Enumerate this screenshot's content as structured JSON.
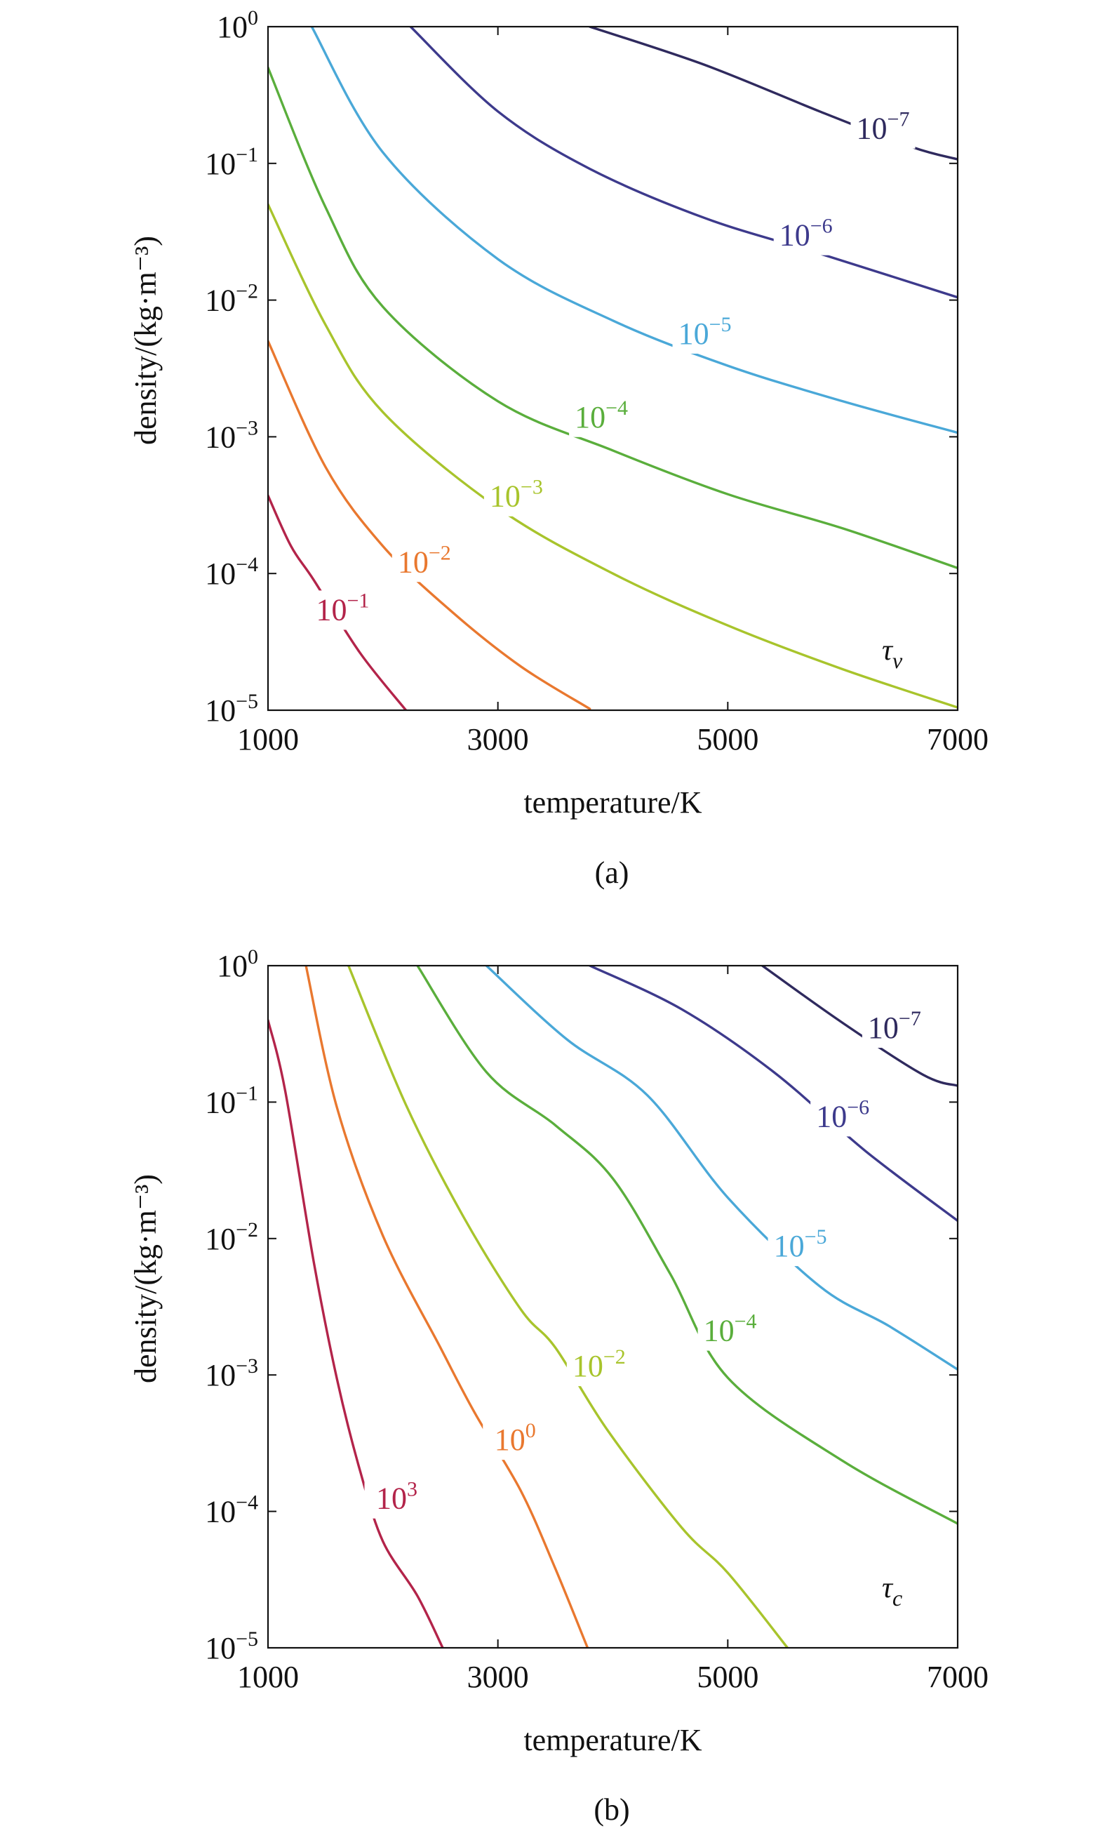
{
  "chart_data": [
    {
      "panel": "(a)",
      "type": "line",
      "xlabel": "temperature/K",
      "ylabel": "density/(kg·m⁻³)",
      "xlim": [
        1000,
        7000
      ],
      "ylim_log10": [
        -5,
        0
      ],
      "yscale": "log",
      "xticks": [
        "1000",
        "3000",
        "5000",
        "7000"
      ],
      "yticks": [
        {
          "base": "10",
          "exp": "0"
        },
        {
          "base": "10",
          "exp": "−1"
        },
        {
          "base": "10",
          "exp": "−2"
        },
        {
          "base": "10",
          "exp": "−3"
        },
        {
          "base": "10",
          "exp": "−4"
        },
        {
          "base": "10",
          "exp": "−5"
        }
      ],
      "annotation": {
        "symbol": "τ",
        "sub": "v"
      },
      "series": [
        {
          "name": "10^-7",
          "label_base": "10",
          "label_exp": "−7",
          "color": "#2f2a5e",
          "points": [
            [
              3800,
              0
            ],
            [
              4800,
              -0.28
            ],
            [
              5800,
              -0.62
            ],
            [
              6600,
              -0.88
            ],
            [
              7000,
              -0.97
            ]
          ],
          "label_at": [
            6350,
            -0.82
          ]
        },
        {
          "name": "10^-6",
          "label_base": "10",
          "label_exp": "−6",
          "color": "#3d3a8c",
          "points": [
            [
              2240,
              0
            ],
            [
              3000,
              -0.62
            ],
            [
              3800,
              -1.04
            ],
            [
              4800,
              -1.4
            ],
            [
              5800,
              -1.66
            ],
            [
              7000,
              -1.98
            ]
          ],
          "label_at": [
            5680,
            -1.6
          ]
        },
        {
          "name": "10^-5",
          "label_base": "10",
          "label_exp": "−5",
          "color": "#4aa8d8",
          "points": [
            [
              1380,
              0
            ],
            [
              2000,
              -0.92
            ],
            [
              3000,
              -1.7
            ],
            [
              4000,
              -2.15
            ],
            [
              5000,
              -2.48
            ],
            [
              6000,
              -2.74
            ],
            [
              7000,
              -2.97
            ]
          ],
          "label_at": [
            4800,
            -2.32
          ]
        },
        {
          "name": "10^-4",
          "label_base": "10",
          "label_exp": "−4",
          "color": "#5aae3c",
          "points": [
            [
              1000,
              -0.3
            ],
            [
              1500,
              -1.32
            ],
            [
              2000,
              -2.05
            ],
            [
              3000,
              -2.74
            ],
            [
              4000,
              -3.1
            ],
            [
              5000,
              -3.42
            ],
            [
              6000,
              -3.67
            ],
            [
              7000,
              -3.96
            ]
          ],
          "label_at": [
            3900,
            -2.93
          ]
        },
        {
          "name": "10^-3",
          "label_base": "10",
          "label_exp": "−3",
          "color": "#a8c42c",
          "points": [
            [
              1000,
              -1.3
            ],
            [
              1500,
              -2.18
            ],
            [
              2000,
              -2.82
            ],
            [
              3000,
              -3.52
            ],
            [
              4000,
              -4.0
            ],
            [
              5000,
              -4.38
            ],
            [
              6000,
              -4.7
            ],
            [
              7000,
              -4.98
            ]
          ],
          "label_at": [
            3160,
            -3.51
          ]
        },
        {
          "name": "10^-2",
          "label_base": "10",
          "label_exp": "−2",
          "color": "#e9782f",
          "points": [
            [
              1000,
              -2.3
            ],
            [
              1500,
              -3.22
            ],
            [
              2000,
              -3.8
            ],
            [
              2600,
              -4.28
            ],
            [
              3200,
              -4.68
            ],
            [
              3800,
              -4.99
            ]
          ],
          "label_at": [
            2360,
            -3.99
          ]
        },
        {
          "name": "10^-1",
          "label_base": "10",
          "label_exp": "−1",
          "color": "#b3244a",
          "points": [
            [
              1000,
              -3.43
            ],
            [
              1200,
              -3.8
            ],
            [
              1400,
              -4.05
            ],
            [
              1800,
              -4.58
            ],
            [
              2200,
              -5.0
            ]
          ],
          "label_at": [
            1650,
            -4.34
          ]
        }
      ]
    },
    {
      "panel": "(b)",
      "type": "line",
      "xlabel": "temperature/K",
      "ylabel": "density/(kg·m⁻³)",
      "xlim": [
        1000,
        7000
      ],
      "ylim_log10": [
        -5,
        0
      ],
      "yscale": "log",
      "xticks": [
        "1000",
        "3000",
        "5000",
        "7000"
      ],
      "yticks": [
        {
          "base": "10",
          "exp": "0"
        },
        {
          "base": "10",
          "exp": "−1"
        },
        {
          "base": "10",
          "exp": "−2"
        },
        {
          "base": "10",
          "exp": "−3"
        },
        {
          "base": "10",
          "exp": "−4"
        },
        {
          "base": "10",
          "exp": "−5"
        }
      ],
      "annotation": {
        "symbol": "τ",
        "sub": "c"
      },
      "series": [
        {
          "name": "10^-7",
          "label_base": "10",
          "label_exp": "−7",
          "color": "#2f2a5e",
          "points": [
            [
              5300,
              0
            ],
            [
              6000,
              -0.42
            ],
            [
              6700,
              -0.8
            ],
            [
              7000,
              -0.88
            ]
          ],
          "label_at": [
            6450,
            -0.53
          ]
        },
        {
          "name": "10^-6",
          "label_base": "10",
          "label_exp": "−6",
          "color": "#3d3a8c",
          "points": [
            [
              3800,
              0
            ],
            [
              4600,
              -0.32
            ],
            [
              5400,
              -0.78
            ],
            [
              6200,
              -1.36
            ],
            [
              7000,
              -1.87
            ]
          ],
          "label_at": [
            6000,
            -1.18
          ]
        },
        {
          "name": "10^-5",
          "label_base": "10",
          "label_exp": "−5",
          "color": "#4aa8d8",
          "points": [
            [
              2900,
              0
            ],
            [
              3600,
              -0.54
            ],
            [
              4300,
              -0.95
            ],
            [
              5000,
              -1.7
            ],
            [
              5800,
              -2.35
            ],
            [
              6400,
              -2.64
            ],
            [
              7000,
              -2.96
            ]
          ],
          "label_at": [
            5630,
            -2.13
          ]
        },
        {
          "name": "10^-4",
          "label_base": "10",
          "label_exp": "−4",
          "color": "#5aae3c",
          "points": [
            [
              2300,
              0
            ],
            [
              2900,
              -0.78
            ],
            [
              3500,
              -1.17
            ],
            [
              4000,
              -1.56
            ],
            [
              4500,
              -2.26
            ],
            [
              5000,
              -3.02
            ],
            [
              6000,
              -3.63
            ],
            [
              7000,
              -4.09
            ]
          ],
          "label_at": [
            5020,
            -2.75
          ]
        },
        {
          "name": "10^-2",
          "label_base": "10",
          "label_exp": "−2",
          "color": "#a8c42c",
          "points": [
            [
              1700,
              0
            ],
            [
              2200,
              -1.02
            ],
            [
              2700,
              -1.84
            ],
            [
              3200,
              -2.52
            ],
            [
              3500,
              -2.8
            ],
            [
              3950,
              -3.4
            ],
            [
              4600,
              -4.12
            ],
            [
              5000,
              -4.45
            ],
            [
              5520,
              -5.0
            ]
          ],
          "label_at": [
            3880,
            -3.01
          ]
        },
        {
          "name": "10^0",
          "label_base": "10",
          "label_exp": "0",
          "color": "#e9782f",
          "points": [
            [
              1330,
              0
            ],
            [
              1600,
              -1.04
            ],
            [
              2000,
              -1.98
            ],
            [
              2500,
              -2.8
            ],
            [
              2800,
              -3.28
            ],
            [
              3200,
              -3.85
            ],
            [
              3500,
              -4.42
            ],
            [
              3780,
              -5.0
            ]
          ],
          "label_at": [
            3150,
            -3.55
          ]
        },
        {
          "name": "10^3",
          "label_base": "10",
          "label_exp": "3",
          "color": "#b3244a",
          "points": [
            [
              1000,
              -0.4
            ],
            [
              1150,
              -0.92
            ],
            [
              1400,
              -2.18
            ],
            [
              1600,
              -3.03
            ],
            [
              1800,
              -3.7
            ],
            [
              2000,
              -4.22
            ],
            [
              2300,
              -4.62
            ],
            [
              2520,
              -5.0
            ]
          ],
          "label_at": [
            2120,
            -3.98
          ]
        }
      ]
    }
  ],
  "captions": [
    "(a)",
    "(b)"
  ]
}
